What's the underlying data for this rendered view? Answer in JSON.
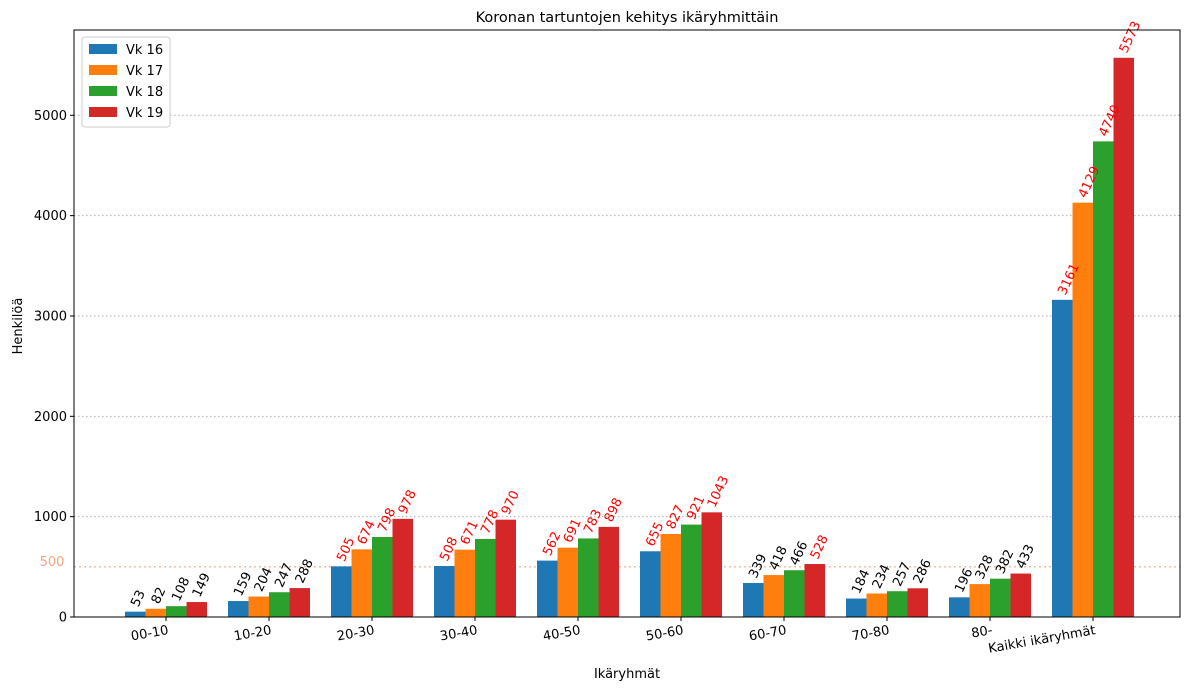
{
  "chart_data": {
    "type": "bar",
    "title": "Koronan tartuntojen kehitys ikäryhmittäin",
    "xlabel": "Ikäryhmät",
    "ylabel": "Henkilöä",
    "ylim": [
      0,
      5850
    ],
    "yticks": [
      0,
      1000,
      2000,
      3000,
      4000,
      5000
    ],
    "grid": "horizontal-dotted",
    "legend": "top-left",
    "reference_line": {
      "value": 500,
      "label": "500",
      "color": "#f4a582"
    },
    "highlight_rule": {
      "threshold": 500,
      "color_above": "#ff0000",
      "color_below": "#000000"
    },
    "categories": [
      "00-10",
      "10-20",
      "20-30",
      "30-40",
      "40-50",
      "50-60",
      "60-70",
      "70-80",
      "80-",
      "Kaikki ikäryhmät"
    ],
    "series": [
      {
        "name": "Vk 16",
        "color": "#1f77b4",
        "values": [
          53,
          159,
          505,
          508,
          562,
          655,
          339,
          184,
          196,
          3161
        ]
      },
      {
        "name": "Vk 17",
        "color": "#ff7f0e",
        "values": [
          82,
          204,
          674,
          671,
          691,
          827,
          418,
          234,
          328,
          4129
        ]
      },
      {
        "name": "Vk 18",
        "color": "#2ca02c",
        "values": [
          108,
          247,
          798,
          778,
          783,
          921,
          466,
          257,
          382,
          4740
        ]
      },
      {
        "name": "Vk 19",
        "color": "#d62728",
        "values": [
          149,
          288,
          978,
          970,
          898,
          1043,
          528,
          286,
          433,
          5573
        ]
      }
    ]
  }
}
